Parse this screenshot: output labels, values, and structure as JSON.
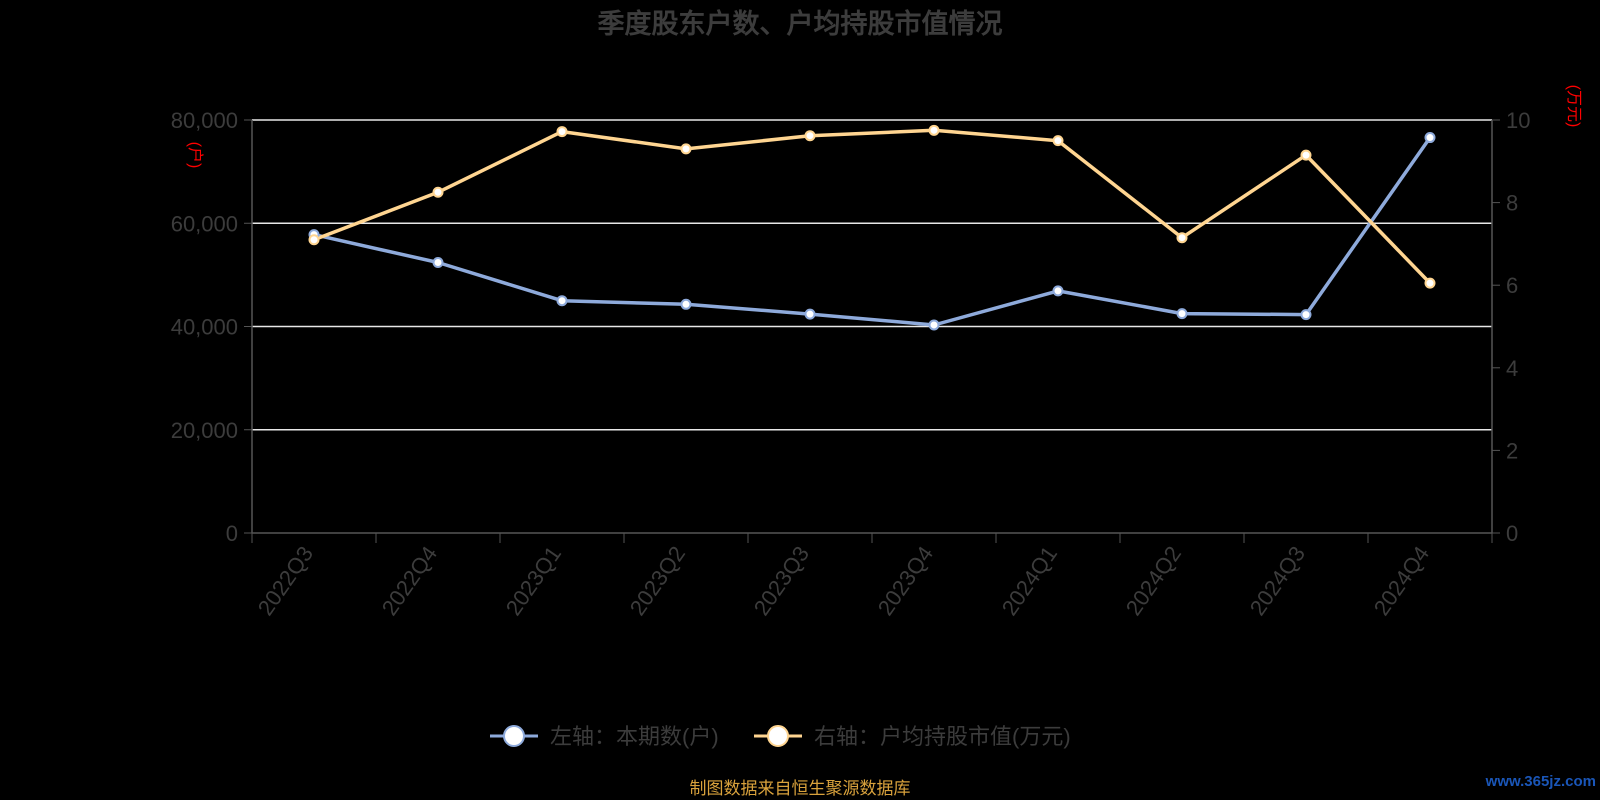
{
  "chart_data": {
    "type": "line",
    "title": "季度股东户数、户均持股市值情况",
    "categories": [
      "2022Q3",
      "2022Q4",
      "2023Q1",
      "2023Q2",
      "2023Q3",
      "2023Q4",
      "2024Q1",
      "2024Q2",
      "2024Q3",
      "2024Q4"
    ],
    "left_axis": {
      "unit_label": "(户)",
      "ylim": [
        0,
        80000
      ],
      "ticks": [
        "0",
        "20,000",
        "40,000",
        "60,000",
        "80,000"
      ]
    },
    "right_axis": {
      "unit_label": "(万元)",
      "ylim": [
        0,
        10
      ],
      "ticks": [
        "0",
        "2",
        "4",
        "6",
        "8",
        "10"
      ]
    },
    "series": [
      {
        "name": "左轴：本期数(户)",
        "axis": "left",
        "color": "#8eaadb",
        "values": [
          57800,
          52400,
          45000,
          44300,
          42400,
          40300,
          46900,
          42500,
          42300,
          76600
        ]
      },
      {
        "name": "右轴：户均持股市值(万元)",
        "axis": "right",
        "color": "#ffd591",
        "values": [
          7.1,
          8.25,
          9.72,
          9.3,
          9.62,
          9.75,
          9.5,
          7.15,
          9.15,
          6.05
        ]
      }
    ],
    "grid": true,
    "legend_position": "bottom-center",
    "source_note": "制图数据来自恒生聚源数据库",
    "watermark": "www.365jz.com"
  }
}
